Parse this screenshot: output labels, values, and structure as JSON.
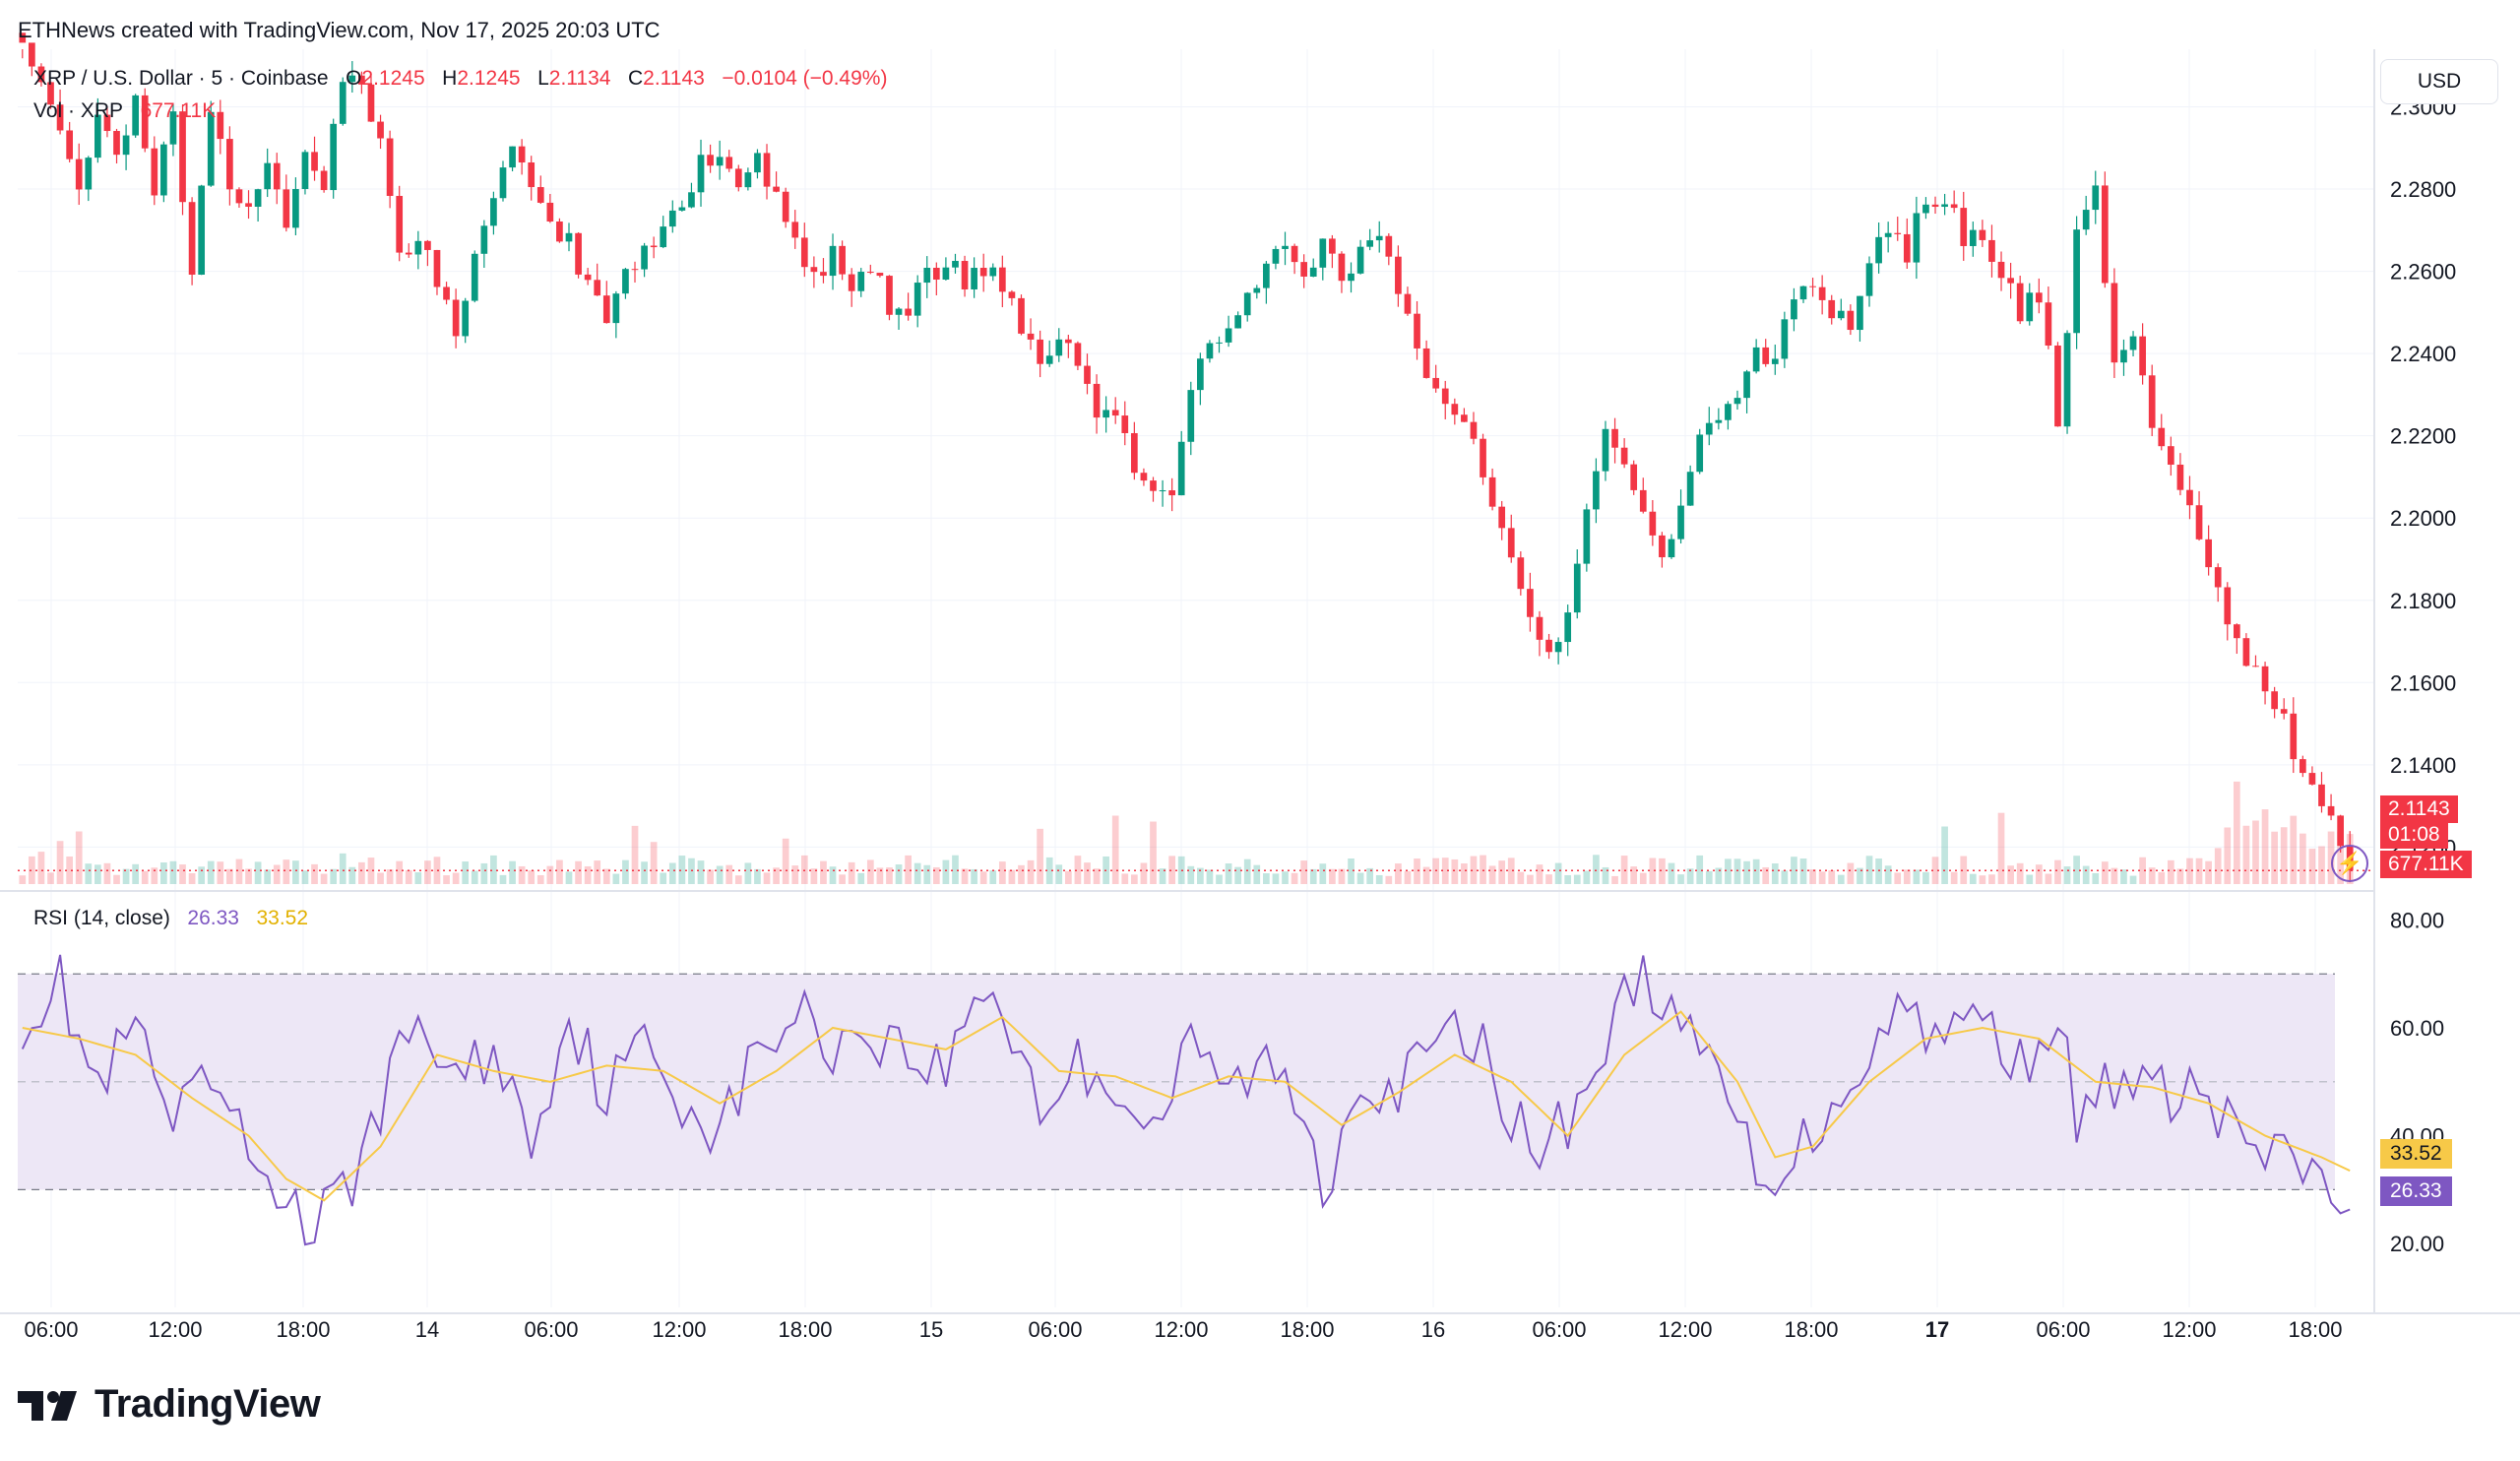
{
  "caption": "ETHNews created with TradingView.com, Nov 17, 2025 20:03 UTC",
  "header": {
    "symbol": "XRP / U.S. Dollar · 5 · Coinbase",
    "o_label": "O",
    "o_value": "2.1245",
    "h_label": "H",
    "h_value": "2.1245",
    "l_label": "L",
    "l_value": "2.1134",
    "c_label": "C",
    "c_value": "2.1143",
    "change": "−0.0104 (−0.49%)",
    "vol_label": "Vol · XRP",
    "vol_value": "677.11K",
    "rsi_label": "RSI (14, close)",
    "rsi_value": "26.33",
    "rsi_ma_value": "33.52"
  },
  "currency_button": "USD",
  "price_badge": {
    "price": "2.1143",
    "countdown": "01:08",
    "volume": "677.11K"
  },
  "brand": "TradingView",
  "colors": {
    "up": "#089981",
    "down": "#f23645",
    "rsi": "#7e57c2",
    "rsi_ma": "#f7c948",
    "rsi_band": "#ede7f6"
  },
  "chart_data": [
    {
      "type": "candlestick",
      "title": "XRP / U.S. Dollar · 5 · Coinbase",
      "y_ticks": [
        "2.3000",
        "2.2800",
        "2.2600",
        "2.2400",
        "2.2200",
        "2.2000",
        "2.1800",
        "2.1600",
        "2.1400",
        "2.1200"
      ],
      "ylim": [
        2.111,
        2.314
      ],
      "x_ticks": [
        "06:00",
        "12:00",
        "18:00",
        "14",
        "06:00",
        "12:00",
        "18:00",
        "15",
        "06:00",
        "12:00",
        "18:00",
        "16",
        "06:00",
        "12:00",
        "18:00",
        "17",
        "06:00",
        "12:00",
        "18:00"
      ],
      "last_price": 2.1143,
      "close_path": [
        [
          0,
          2.318
        ],
        [
          4,
          2.296
        ],
        [
          6,
          2.277
        ],
        [
          8,
          2.3
        ],
        [
          10,
          2.287
        ],
        [
          12,
          2.303
        ],
        [
          14,
          2.281
        ],
        [
          16,
          2.296
        ],
        [
          18,
          2.26
        ],
        [
          20,
          2.299
        ],
        [
          22,
          2.282
        ],
        [
          24,
          2.276
        ],
        [
          26,
          2.288
        ],
        [
          28,
          2.268
        ],
        [
          30,
          2.292
        ],
        [
          32,
          2.282
        ],
        [
          34,
          2.307
        ],
        [
          36,
          2.305
        ],
        [
          38,
          2.29
        ],
        [
          40,
          2.262
        ],
        [
          42,
          2.27
        ],
        [
          44,
          2.258
        ],
        [
          46,
          2.244
        ],
        [
          48,
          2.262
        ],
        [
          50,
          2.276
        ],
        [
          52,
          2.293
        ],
        [
          54,
          2.281
        ],
        [
          56,
          2.272
        ],
        [
          58,
          2.268
        ],
        [
          60,
          2.255
        ],
        [
          62,
          2.248
        ],
        [
          64,
          2.258
        ],
        [
          66,
          2.264
        ],
        [
          68,
          2.272
        ],
        [
          70,
          2.276
        ],
        [
          72,
          2.287
        ],
        [
          74,
          2.289
        ],
        [
          76,
          2.28
        ],
        [
          78,
          2.286
        ],
        [
          80,
          2.281
        ],
        [
          82,
          2.266
        ],
        [
          84,
          2.259
        ],
        [
          86,
          2.264
        ],
        [
          88,
          2.258
        ],
        [
          90,
          2.262
        ],
        [
          92,
          2.252
        ],
        [
          94,
          2.251
        ],
        [
          96,
          2.258
        ],
        [
          98,
          2.262
        ],
        [
          100,
          2.258
        ],
        [
          102,
          2.26
        ],
        [
          104,
          2.258
        ],
        [
          106,
          2.244
        ],
        [
          108,
          2.238
        ],
        [
          110,
          2.245
        ],
        [
          112,
          2.236
        ],
        [
          114,
          2.226
        ],
        [
          116,
          2.224
        ],
        [
          118,
          2.212
        ],
        [
          120,
          2.208
        ],
        [
          122,
          2.205
        ],
        [
          124,
          2.231
        ],
        [
          126,
          2.242
        ],
        [
          128,
          2.248
        ],
        [
          130,
          2.255
        ],
        [
          132,
          2.262
        ],
        [
          134,
          2.268
        ],
        [
          136,
          2.26
        ],
        [
          138,
          2.266
        ],
        [
          140,
          2.259
        ],
        [
          142,
          2.264
        ],
        [
          144,
          2.271
        ],
        [
          146,
          2.252
        ],
        [
          148,
          2.242
        ],
        [
          150,
          2.232
        ],
        [
          152,
          2.227
        ],
        [
          154,
          2.218
        ],
        [
          156,
          2.205
        ],
        [
          158,
          2.188
        ],
        [
          160,
          2.175
        ],
        [
          162,
          2.165
        ],
        [
          164,
          2.18
        ],
        [
          166,
          2.202
        ],
        [
          168,
          2.222
        ],
        [
          170,
          2.215
        ],
        [
          172,
          2.202
        ],
        [
          174,
          2.19
        ],
        [
          176,
          2.205
        ],
        [
          178,
          2.218
        ],
        [
          180,
          2.225
        ],
        [
          182,
          2.232
        ],
        [
          184,
          2.24
        ],
        [
          186,
          2.238
        ],
        [
          188,
          2.255
        ],
        [
          190,
          2.258
        ],
        [
          192,
          2.25
        ],
        [
          194,
          2.246
        ],
        [
          196,
          2.262
        ],
        [
          198,
          2.27
        ],
        [
          200,
          2.265
        ],
        [
          202,
          2.278
        ],
        [
          204,
          2.276
        ],
        [
          206,
          2.269
        ],
        [
          208,
          2.266
        ],
        [
          210,
          2.26
        ],
        [
          212,
          2.25
        ],
        [
          214,
          2.255
        ],
        [
          216,
          2.225
        ],
        [
          218,
          2.268
        ],
        [
          220,
          2.282
        ],
        [
          222,
          2.238
        ],
        [
          224,
          2.242
        ],
        [
          226,
          2.224
        ],
        [
          228,
          2.21
        ],
        [
          230,
          2.203
        ],
        [
          232,
          2.188
        ],
        [
          234,
          2.175
        ],
        [
          236,
          2.165
        ],
        [
          238,
          2.158
        ],
        [
          240,
          2.15
        ],
        [
          242,
          2.138
        ],
        [
          244,
          2.13
        ],
        [
          246,
          2.12
        ],
        [
          247,
          2.1143
        ]
      ]
    },
    {
      "type": "bar",
      "title": "Vol · XRP",
      "last_value": "677.11K"
    },
    {
      "type": "line",
      "title": "RSI (14, close)",
      "series": [
        {
          "name": "RSI",
          "last": 26.33
        },
        {
          "name": "RSI MA",
          "last": 33.52
        }
      ],
      "y_ticks": [
        "80.00",
        "60.00",
        "40.00",
        "20.00"
      ],
      "ylim": [
        10,
        83
      ],
      "bands": {
        "upper": 70,
        "middle": 50,
        "lower": 30
      },
      "rsi_path": [
        [
          0,
          62
        ],
        [
          4,
          68
        ],
        [
          8,
          48
        ],
        [
          12,
          60
        ],
        [
          16,
          41
        ],
        [
          20,
          50
        ],
        [
          24,
          36
        ],
        [
          28,
          30
        ],
        [
          30,
          22
        ],
        [
          34,
          28
        ],
        [
          38,
          46
        ],
        [
          42,
          62
        ],
        [
          46,
          50
        ],
        [
          50,
          56
        ],
        [
          54,
          40
        ],
        [
          58,
          62
        ],
        [
          62,
          48
        ],
        [
          66,
          57
        ],
        [
          70,
          47
        ],
        [
          74,
          41
        ],
        [
          78,
          55
        ],
        [
          82,
          63
        ],
        [
          86,
          57
        ],
        [
          90,
          60
        ],
        [
          94,
          55
        ],
        [
          98,
          52
        ],
        [
          102,
          69
        ],
        [
          106,
          56
        ],
        [
          108,
          45
        ],
        [
          112,
          53
        ],
        [
          116,
          50
        ],
        [
          120,
          41
        ],
        [
          124,
          56
        ],
        [
          128,
          49
        ],
        [
          132,
          53
        ],
        [
          136,
          45
        ],
        [
          138,
          30
        ],
        [
          142,
          52
        ],
        [
          146,
          48
        ],
        [
          150,
          57
        ],
        [
          154,
          59
        ],
        [
          158,
          45
        ],
        [
          160,
          36
        ],
        [
          164,
          43
        ],
        [
          168,
          57
        ],
        [
          172,
          72
        ],
        [
          176,
          58
        ],
        [
          180,
          52
        ],
        [
          182,
          42
        ],
        [
          184,
          33
        ],
        [
          188,
          36
        ],
        [
          192,
          46
        ],
        [
          196,
          56
        ],
        [
          200,
          65
        ],
        [
          204,
          58
        ],
        [
          208,
          63
        ],
        [
          212,
          53
        ],
        [
          216,
          64
        ],
        [
          218,
          41
        ],
        [
          222,
          51
        ],
        [
          226,
          47
        ],
        [
          230,
          49
        ],
        [
          234,
          42
        ],
        [
          238,
          36
        ],
        [
          242,
          34
        ],
        [
          247,
          26.33
        ]
      ],
      "rsi_ma_path": [
        [
          0,
          60
        ],
        [
          6,
          58
        ],
        [
          12,
          55
        ],
        [
          18,
          47
        ],
        [
          24,
          40
        ],
        [
          28,
          32
        ],
        [
          32,
          28
        ],
        [
          38,
          38
        ],
        [
          44,
          55
        ],
        [
          50,
          52
        ],
        [
          56,
          50
        ],
        [
          62,
          53
        ],
        [
          68,
          52
        ],
        [
          74,
          46
        ],
        [
          80,
          52
        ],
        [
          86,
          60
        ],
        [
          92,
          58
        ],
        [
          98,
          56
        ],
        [
          104,
          62
        ],
        [
          110,
          52
        ],
        [
          116,
          51
        ],
        [
          122,
          47
        ],
        [
          128,
          51
        ],
        [
          134,
          50
        ],
        [
          140,
          42
        ],
        [
          146,
          48
        ],
        [
          152,
          55
        ],
        [
          158,
          50
        ],
        [
          164,
          40
        ],
        [
          170,
          55
        ],
        [
          176,
          63
        ],
        [
          182,
          50
        ],
        [
          186,
          36
        ],
        [
          190,
          38
        ],
        [
          196,
          50
        ],
        [
          202,
          58
        ],
        [
          208,
          60
        ],
        [
          214,
          58
        ],
        [
          220,
          50
        ],
        [
          226,
          49
        ],
        [
          232,
          46
        ],
        [
          238,
          40
        ],
        [
          244,
          36
        ],
        [
          247,
          33.52
        ]
      ]
    }
  ]
}
